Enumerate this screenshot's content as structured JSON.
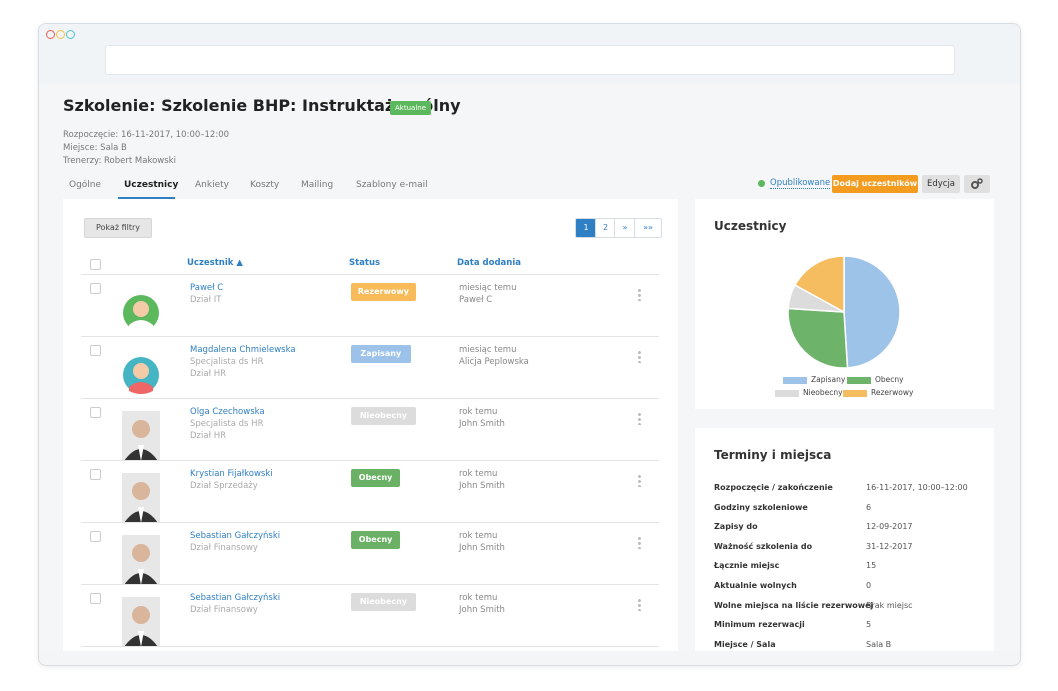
{
  "header": {
    "title": "Szkolenie: Szkolenie BHP: Instruktaż ogólny",
    "badge": "Aktualne",
    "meta": [
      "Rozpoczęcie: 16-11-2017, 10:00–12:00",
      "Miejsce: Sala B",
      "Trenerzy: Robert Makowski"
    ]
  },
  "tabs": [
    "Ogólne",
    "Uczestnicy",
    "Ankiety",
    "Koszty",
    "Mailing",
    "Szablony e-mail"
  ],
  "actions": {
    "status": "Opublikowane",
    "add": "Dodaj uczestników",
    "edit": "Edycja"
  },
  "filters": "Pokaż filtry",
  "pagination": [
    "1",
    "2",
    "»",
    "»»"
  ],
  "table": {
    "columns": [
      "Uczestnik ▲",
      "Status",
      "Data dodania"
    ],
    "rows": [
      {
        "name": "Paweł C",
        "dept": [
          "Dział IT"
        ],
        "status": "Rezerwowy",
        "color": "#f7bb5a",
        "added": "miesiąc temu",
        "by": "Paweł C"
      },
      {
        "name": "Magdalena Chmielewska",
        "dept": [
          "Specjalista ds HR",
          "Dział HR"
        ],
        "status": "Zapisany",
        "color": "#9cc2ea",
        "added": "miesiąc temu",
        "by": "Alicja Peplowska"
      },
      {
        "name": "Olga Czechowska",
        "dept": [
          "Specjalista ds HR",
          "Dział HR"
        ],
        "status": "Nieobecny",
        "color": "#dcdcdc",
        "added": "rok temu",
        "by": "John Smith"
      },
      {
        "name": "Krystian Fijałkowski",
        "dept": [
          "Dział Sprzedaży"
        ],
        "status": "Obecny",
        "color": "#6ab166",
        "added": "rok temu",
        "by": "John Smith"
      },
      {
        "name": "Sebastian Gałczyński",
        "dept": [
          "Dział Finansowy"
        ],
        "status": "Obecny",
        "color": "#6ab166",
        "added": "rok temu",
        "by": "John Smith"
      },
      {
        "name": "Sebastian Gałczyński",
        "dept": [
          "Dział Finansowy"
        ],
        "status": "Nieobecny",
        "color": "#dcdcdc",
        "added": "rok temu",
        "by": "John Smith"
      }
    ]
  },
  "chart_data": {
    "type": "pie",
    "title": "Uczestnicy",
    "categories": [
      "Zapisany",
      "Obecny",
      "Nieobecny",
      "Rezerwowy"
    ],
    "values": [
      49,
      27,
      7,
      17
    ],
    "colors": [
      "#9ec3e8",
      "#6db36a",
      "#dcdcdc",
      "#f6bd60"
    ]
  },
  "details": {
    "title": "Terminy i miejsca",
    "rows": [
      [
        "Rozpoczęcie / zakończenie",
        "16-11-2017, 10:00–12:00"
      ],
      [
        "Godziny szkoleniowe",
        "6"
      ],
      [
        "Zapisy do",
        "12-09-2017"
      ],
      [
        "Ważność szkolenia do",
        "31-12-2017"
      ],
      [
        "Łącznie miejsc",
        "15"
      ],
      [
        "Aktualnie wolnych",
        "0"
      ],
      [
        "Wolne miejsca na liście rezerwowej",
        "Brak miejsc"
      ],
      [
        "Minimum rezerwacji",
        "5"
      ],
      [
        "Miejsce / Sala",
        "Sala B"
      ]
    ]
  }
}
